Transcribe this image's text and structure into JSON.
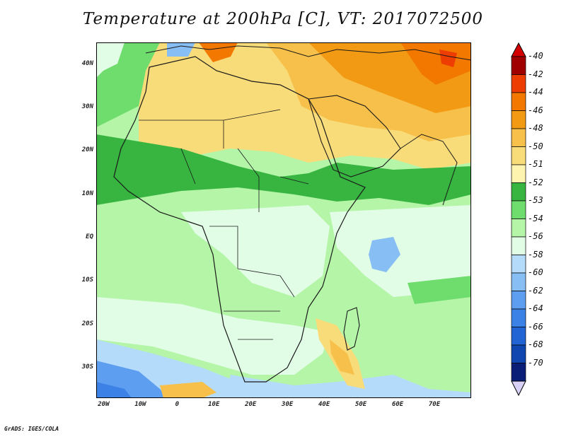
{
  "title": "Temperature at 200hPa [C], VT: 2017072500",
  "credit": "GrADS: IGES/COLA",
  "lat_labels": [
    {
      "text": "40N",
      "lat": 40
    },
    {
      "text": "30N",
      "lat": 30
    },
    {
      "text": "20N",
      "lat": 20
    },
    {
      "text": "10N",
      "lat": 10
    },
    {
      "text": "EQ",
      "lat": 0
    },
    {
      "text": "10S",
      "lat": -10
    },
    {
      "text": "20S",
      "lat": -20
    },
    {
      "text": "30S",
      "lat": -30
    }
  ],
  "lon_labels": [
    {
      "text": "20W",
      "lon": -20
    },
    {
      "text": "10W",
      "lon": -10
    },
    {
      "text": "0",
      "lon": 0
    },
    {
      "text": "10E",
      "lon": 10
    },
    {
      "text": "20E",
      "lon": 20
    },
    {
      "text": "30E",
      "lon": 30
    },
    {
      "text": "40E",
      "lon": 40
    },
    {
      "text": "50E",
      "lon": 50
    },
    {
      "text": "60E",
      "lon": 60
    },
    {
      "text": "70E",
      "lon": 70
    }
  ],
  "domain": {
    "lon_min": -22,
    "lon_max": 80,
    "lat_min": -37,
    "lat_max": 45
  },
  "legend": [
    {
      "label": "-40",
      "color": "#a00000"
    },
    {
      "label": "-42",
      "color": "#ee3d00"
    },
    {
      "label": "-44",
      "color": "#f27800"
    },
    {
      "label": "-46",
      "color": "#f29a14"
    },
    {
      "label": "-48",
      "color": "#f7c04a"
    },
    {
      "label": "-50",
      "color": "#f9dc7a"
    },
    {
      "label": "-51",
      "color": "#fff3b0"
    },
    {
      "label": "-52",
      "color": "#37b540"
    },
    {
      "label": "-53",
      "color": "#6fdc6e"
    },
    {
      "label": "-54",
      "color": "#b4f5a8"
    },
    {
      "label": "-56",
      "color": "#e1fde6"
    },
    {
      "label": "-58",
      "color": "#b4dcfa"
    },
    {
      "label": "-60",
      "color": "#87bff5"
    },
    {
      "label": "-62",
      "color": "#5e9ef0"
    },
    {
      "label": "-64",
      "color": "#3c82e6"
    },
    {
      "label": "-66",
      "color": "#2264d4"
    },
    {
      "label": "-68",
      "color": "#0f46b0"
    },
    {
      "label": "-70",
      "color": "#0a1e78"
    }
  ],
  "colorbar_ends": {
    "top": "#d40000",
    "bottom": "#d8d0f5"
  }
}
